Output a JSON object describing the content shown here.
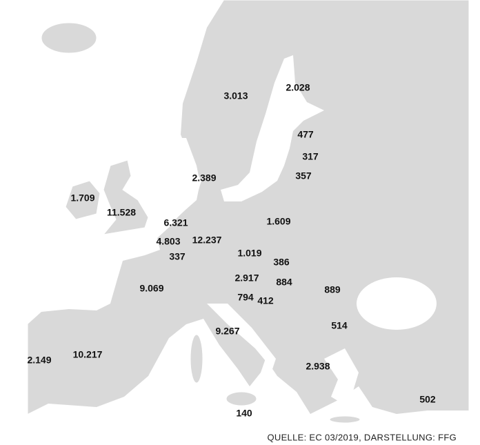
{
  "map": {
    "labels": [
      "3.013",
      "2.028",
      "477",
      "317",
      "357",
      "2.389",
      "1.709",
      "11.528",
      "6.321",
      "1.609",
      "4.803",
      "12.237",
      "1.019",
      "337",
      "386",
      "2.917",
      "884",
      "889",
      "9.069",
      "794",
      "412",
      "514",
      "9.267",
      "10.217",
      "2.149",
      "2.938",
      "502",
      "140"
    ],
    "source": "QUELLE: EC 03/2019, DARSTELLUNG: FFG"
  }
}
